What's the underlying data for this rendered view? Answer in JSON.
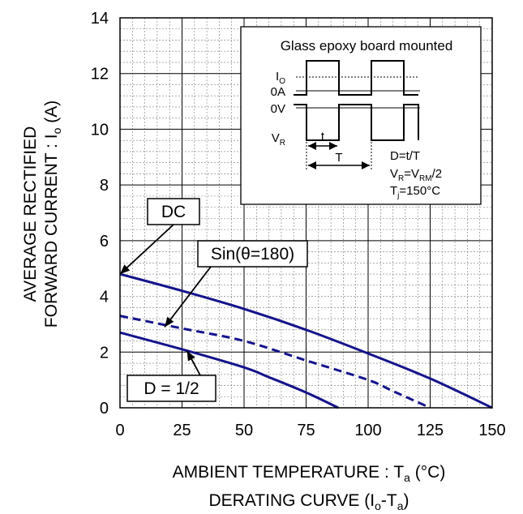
{
  "chart_data": {
    "type": "line",
    "xlabel": "AMBIENT TEMPERATURE : T",
    "xlabel_sub": "a",
    "xlabel_unit": " (°C)",
    "xlabel2": "DERATING CURVE (I",
    "xlabel2_sub1": "o",
    "xlabel2_mid": "-T",
    "xlabel2_sub2": "a",
    "xlabel2_end": ")",
    "ylabel_line1": "AVERAGE RECTIFIED",
    "ylabel_line2": "FORWARD CURRENT : I",
    "ylabel_line2_sub": "o",
    "ylabel_line2_unit": " (A)",
    "xlim": [
      0,
      150
    ],
    "ylim": [
      0,
      14
    ],
    "xticks": [
      0,
      25,
      50,
      75,
      100,
      125,
      150
    ],
    "yticks": [
      0,
      2,
      4,
      6,
      8,
      10,
      12,
      14
    ],
    "grid": true,
    "series": [
      {
        "name": "DC",
        "style": "solid",
        "x": [
          0,
          25,
          50,
          75,
          100,
          125,
          150
        ],
        "y": [
          4.8,
          4.2,
          3.55,
          2.8,
          1.95,
          1.05,
          0.0
        ]
      },
      {
        "name": "Sin(θ=180)",
        "style": "dashed",
        "x": [
          0,
          25,
          50,
          75,
          100,
          110,
          125
        ],
        "y": [
          3.3,
          2.85,
          2.4,
          1.7,
          1.0,
          0.6,
          0.0
        ]
      },
      {
        "name": "D = 1/2",
        "style": "solid",
        "x": [
          0,
          25,
          50,
          60,
          75,
          88
        ],
        "y": [
          2.7,
          2.1,
          1.45,
          1.1,
          0.55,
          0.0
        ]
      }
    ],
    "callouts": [
      {
        "label": "DC",
        "series": 0,
        "point_x": 0,
        "point_y": 4.8
      },
      {
        "label": "Sin(θ=180)",
        "series": 1,
        "point_x": 18,
        "point_y": 2.9
      },
      {
        "label": "D = 1/2",
        "series": 2,
        "point_x": 27,
        "point_y": 2.05
      }
    ],
    "line_color": "#14148c",
    "inset": {
      "title": "Glass epoxy board mounted",
      "io_label": "I",
      "io_sub": "O",
      "zero_a": "0A",
      "zero_v": "0V",
      "vr_label": "V",
      "vr_sub": "R",
      "t_label": "t",
      "T_label": "T",
      "eq1": "D=t/T",
      "eq2_a": "V",
      "eq2_sub1": "R",
      "eq2_b": "=V",
      "eq2_sub2": "RM",
      "eq2_c": "/2",
      "eq3_a": "T",
      "eq3_sub": "j",
      "eq3_b": "=150°C"
    }
  }
}
